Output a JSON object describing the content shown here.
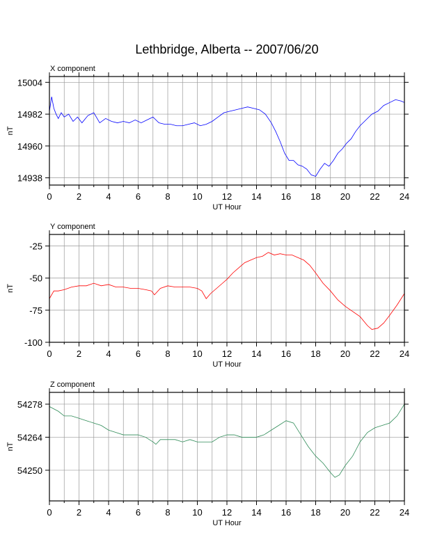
{
  "page_title": "Lethbridge, Alberta -- 2007/06/20",
  "chart_data": [
    {
      "type": "line",
      "title": "X component",
      "xlabel": "UT Hour",
      "ylabel": "nT",
      "xlim": [
        0,
        24
      ],
      "ylim": [
        14933,
        15008
      ],
      "xticks": [
        0,
        2,
        4,
        6,
        8,
        10,
        12,
        14,
        16,
        18,
        20,
        22,
        24
      ],
      "yticks": [
        14938,
        14960,
        14982,
        15004
      ],
      "grid": true,
      "color": "#0000ff",
      "series": [
        {
          "x": [
            0,
            0.15,
            0.3,
            0.45,
            0.6,
            0.8,
            1,
            1.3,
            1.6,
            1.9,
            2.2,
            2.6,
            3,
            3.4,
            3.8,
            4.2,
            4.6,
            5,
            5.4,
            5.8,
            6.2,
            6.6,
            7,
            7.4,
            7.8,
            8.2,
            8.6,
            9,
            9.4,
            9.8,
            10.2,
            10.6,
            11,
            11.4,
            11.8,
            12.2,
            12.6,
            13,
            13.4,
            13.8,
            14.2,
            14.6,
            15,
            15.3,
            15.6,
            15.9,
            16.2,
            16.5,
            16.8,
            17.1,
            17.4,
            17.7,
            18,
            18.3,
            18.6,
            18.9,
            19.2,
            19.5,
            19.8,
            20.1,
            20.4,
            20.7,
            21,
            21.4,
            21.8,
            22.2,
            22.6,
            23,
            23.4,
            23.8,
            24
          ],
          "values": [
            14984,
            14994,
            14986,
            14982,
            14979,
            14983,
            14980,
            14982,
            14977,
            14980,
            14976,
            14981,
            14983,
            14976,
            14979,
            14977,
            14976,
            14977,
            14976,
            14978,
            14976,
            14978,
            14980,
            14976,
            14975,
            14975,
            14974,
            14974,
            14975,
            14976,
            14974,
            14975,
            14977,
            14980,
            14983,
            14984,
            14985,
            14986,
            14987,
            14986,
            14985,
            14982,
            14976,
            14970,
            14963,
            14955,
            14950,
            14950,
            14947,
            14946,
            14944,
            14940,
            14939,
            14944,
            14948,
            14946,
            14950,
            14955,
            14958,
            14962,
            14965,
            14970,
            14974,
            14978,
            14982,
            14984,
            14988,
            14990,
            14992,
            14991,
            14990
          ]
        }
      ]
    },
    {
      "type": "line",
      "title": "Y component",
      "xlabel": "UT Hour",
      "ylabel": "nT",
      "xlim": [
        0,
        24
      ],
      "ylim": [
        -100,
        -16
      ],
      "xticks": [
        0,
        2,
        4,
        6,
        8,
        10,
        12,
        14,
        16,
        18,
        20,
        22,
        24
      ],
      "yticks": [
        -100,
        -75,
        -50,
        -25
      ],
      "grid": true,
      "color": "#ff0000",
      "series": [
        {
          "x": [
            0,
            0.3,
            0.6,
            1,
            1.5,
            2,
            2.5,
            3,
            3.5,
            4,
            4.5,
            5,
            5.5,
            6,
            6.5,
            6.9,
            7.1,
            7.5,
            8,
            8.5,
            9,
            9.5,
            10,
            10.3,
            10.6,
            10.9,
            11.3,
            11.7,
            12,
            12.4,
            12.8,
            13.2,
            13.6,
            14,
            14.4,
            14.8,
            15.2,
            15.6,
            16,
            16.4,
            16.8,
            17.2,
            17.6,
            18,
            18.5,
            19,
            19.5,
            20,
            20.5,
            21,
            21.5,
            21.8,
            22.2,
            22.6,
            23,
            23.5,
            24
          ],
          "values": [
            -66,
            -60,
            -60,
            -59,
            -57,
            -56,
            -56,
            -54,
            -56,
            -55,
            -57,
            -57,
            -58,
            -58,
            -59,
            -60,
            -63,
            -58,
            -56,
            -57,
            -57,
            -57,
            -58,
            -60,
            -66,
            -62,
            -58,
            -54,
            -51,
            -46,
            -42,
            -38,
            -36,
            -34,
            -33,
            -30,
            -32,
            -31,
            -32,
            -32,
            -34,
            -36,
            -40,
            -46,
            -54,
            -60,
            -67,
            -72,
            -76,
            -80,
            -87,
            -90,
            -89,
            -85,
            -79,
            -71,
            -62
          ]
        }
      ]
    },
    {
      "type": "line",
      "title": "Z component",
      "xlabel": "UT Hour",
      "ylabel": "nT",
      "xlim": [
        0,
        24
      ],
      "ylim": [
        54237,
        54283
      ],
      "xticks": [
        0,
        2,
        4,
        6,
        8,
        10,
        12,
        14,
        16,
        18,
        20,
        22,
        24
      ],
      "yticks": [
        54250,
        54264,
        54278
      ],
      "grid": true,
      "color": "#2e8b57",
      "series": [
        {
          "x": [
            0,
            0.3,
            0.6,
            1,
            1.5,
            2,
            2.5,
            3,
            3.5,
            4,
            4.5,
            5,
            5.5,
            6,
            6.5,
            7,
            7.2,
            7.5,
            8,
            8.5,
            9,
            9.5,
            10,
            10.5,
            11,
            11.5,
            12,
            12.5,
            13,
            13.5,
            14,
            14.5,
            15,
            15.5,
            16,
            16.5,
            17,
            17.5,
            18,
            18.5,
            19,
            19.3,
            19.6,
            20,
            20.5,
            21,
            21.5,
            22,
            22.5,
            23,
            23.5,
            24
          ],
          "values": [
            54277,
            54276,
            54275,
            54273,
            54273,
            54272,
            54271,
            54270,
            54269,
            54267,
            54266,
            54265,
            54265,
            54265,
            54264,
            54262,
            54261,
            54263,
            54263,
            54263,
            54262,
            54263,
            54262,
            54262,
            54262,
            54264,
            54265,
            54265,
            54264,
            54264,
            54264,
            54265,
            54267,
            54269,
            54271,
            54270,
            54265,
            54260,
            54256,
            54253,
            54249,
            54247,
            54248,
            54252,
            54256,
            54262,
            54266,
            54268,
            54269,
            54270,
            54273,
            54278
          ]
        }
      ]
    }
  ]
}
